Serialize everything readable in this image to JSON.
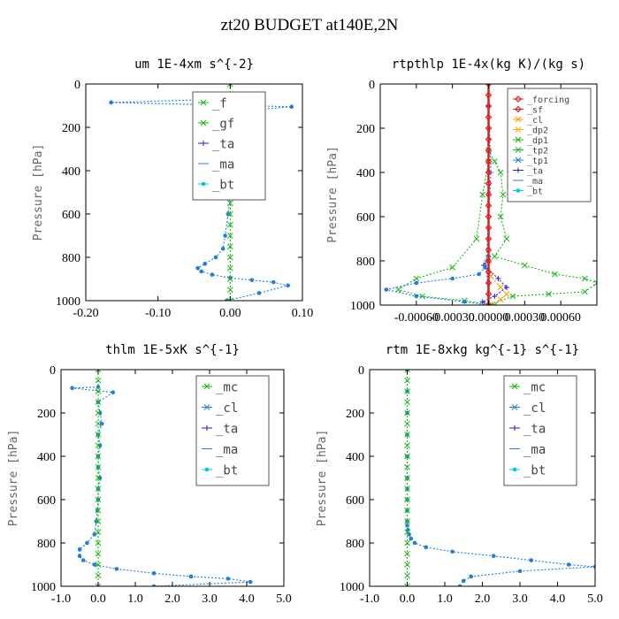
{
  "title": "zt20  BUDGET at140E,2N",
  "chart_data": [
    {
      "type": "line",
      "title": "um  1E-4xm s^{-2}",
      "ylabel": "Pressure [hPa]",
      "xlim": [
        -0.2,
        0.1
      ],
      "ylim": [
        0,
        1000
      ],
      "x_ticks": [
        "-0.20",
        "-0.10",
        "0.00",
        "0.10"
      ],
      "x_tick_values": [
        -0.2,
        -0.1,
        0.0,
        0.1
      ],
      "y_ticks": [
        "0",
        "200",
        "400",
        "600",
        "800",
        "1000"
      ],
      "legend": [
        "_f",
        "_gf",
        "_ta",
        "_ma",
        "_bt"
      ],
      "legend_position": "top-right",
      "series": [
        {
          "name": "_bt",
          "color": "#1e7fe0",
          "style": "dotted-star",
          "x": [
            -0.01,
            -0.165,
            0.085,
            -0.005,
            0.0,
            -0.004,
            0.004,
            -0.003,
            -0.004,
            -0.006,
            -0.002,
            -0.008,
            -0.002,
            0.0,
            -0.003,
            -0.007,
            -0.01,
            -0.02,
            -0.035,
            -0.045,
            -0.04,
            -0.025,
            0.0,
            0.03,
            0.06,
            0.08,
            0.04,
            -0.005
          ],
          "y": [
            70,
            85,
            105,
            130,
            160,
            200,
            240,
            280,
            320,
            360,
            400,
            440,
            480,
            520,
            600,
            700,
            760,
            800,
            830,
            850,
            865,
            880,
            895,
            905,
            915,
            930,
            965,
            1000
          ]
        },
        {
          "name": "_f",
          "color": "#18b818",
          "style": "dotted-x",
          "x": [
            0,
            0,
            0,
            0,
            0,
            0,
            0,
            0,
            0,
            0,
            0,
            0,
            0,
            0,
            0,
            0,
            0,
            0,
            0,
            0,
            0
          ],
          "y": [
            0,
            50,
            100,
            150,
            200,
            250,
            300,
            350,
            400,
            450,
            500,
            550,
            600,
            650,
            700,
            750,
            800,
            850,
            900,
            950,
            1000
          ]
        }
      ]
    },
    {
      "type": "line",
      "title": "rtpthlp  1E-4x(kg K)/(kg s)",
      "ylabel": "Pressure [hPa]",
      "xlim": [
        -0.0009,
        0.0009
      ],
      "ylim": [
        0,
        1000
      ],
      "x_ticks": [
        "-0.00060",
        "-0.00030",
        "0.00000",
        "0.00030",
        "0.00060"
      ],
      "x_tick_values": [
        -0.0006,
        -0.0003,
        0.0,
        0.0003,
        0.0006
      ],
      "y_ticks": [
        "0",
        "200",
        "400",
        "600",
        "800",
        "1000"
      ],
      "legend": [
        "_forcing",
        "_sf",
        "_cl",
        "_dp2",
        "_dp1",
        "_tp2",
        "_tp1",
        "_ta",
        "_ma",
        "_bt"
      ],
      "legend_position": "top-right",
      "series": [
        {
          "name": "_tp2",
          "color": "#18b818",
          "style": "dotted-x",
          "x": [
            0,
            5e-05,
            0.0001,
            0.00012,
            0.0001,
            0.00015,
            5e-05,
            0.0003,
            0.00055,
            0.0008,
            0.0009,
            0.0008,
            0.0005,
            0.0002,
            0.0
          ],
          "y": [
            300,
            350,
            400,
            500,
            600,
            700,
            780,
            820,
            860,
            880,
            900,
            940,
            950,
            960,
            1000
          ]
        },
        {
          "name": "_dp1",
          "color": "#18b818",
          "style": "dotted-x",
          "x": [
            0,
            -5e-05,
            -0.0001,
            -0.0003,
            -0.0006,
            -0.00075,
            -0.00055,
            -0.0002,
            5e-05
          ],
          "y": [
            350,
            500,
            700,
            830,
            880,
            930,
            960,
            980,
            1000
          ]
        },
        {
          "name": "_cl",
          "color": "#ff9900",
          "style": "dotted-x",
          "x": [
            0,
            2e-05,
            0.0001,
            0.00015,
            0.0001,
            0.0
          ],
          "y": [
            800,
            870,
            920,
            950,
            975,
            1000
          ]
        },
        {
          "name": "_ta",
          "color": "#2020c8",
          "style": "dotted-plus",
          "x": [
            0,
            -4e-05,
            8e-05,
            0.00015,
            5e-05,
            -5e-05,
            0.0
          ],
          "y": [
            780,
            820,
            880,
            920,
            960,
            985,
            1000
          ]
        },
        {
          "name": "_ma",
          "color": "#2a77ff",
          "style": "dotted-dash",
          "x": [
            0,
            2e-05,
            -2e-05,
            0.0
          ],
          "y": [
            100,
            400,
            800,
            1000
          ]
        },
        {
          "name": "_bt",
          "color": "#1e7fe0",
          "style": "dotted-star",
          "x": [
            0,
            -3e-05,
            -8e-05,
            -0.0003,
            -0.0006,
            -0.00085,
            -0.0006,
            -0.0002,
            0.0
          ],
          "y": [
            780,
            830,
            860,
            880,
            900,
            930,
            960,
            985,
            1000
          ]
        },
        {
          "name": "_forcing",
          "color": "#dd2020",
          "style": "solid-diamond",
          "x": [
            0,
            0,
            0,
            0,
            0,
            0,
            0,
            0,
            0,
            0,
            0,
            0,
            0,
            0,
            0,
            0,
            0,
            0,
            0,
            0,
            0
          ],
          "y": [
            0,
            50,
            100,
            150,
            200,
            250,
            300,
            350,
            400,
            450,
            500,
            550,
            600,
            650,
            700,
            750,
            800,
            850,
            900,
            950,
            1000
          ]
        }
      ]
    },
    {
      "type": "line",
      "title": "thlm  1E-5xK s^{-1}",
      "ylabel": "Pressure [hPa]",
      "xlim": [
        -1.0,
        5.0
      ],
      "ylim": [
        0,
        1000
      ],
      "x_ticks": [
        "-1.0",
        "0.0",
        "1.0",
        "2.0",
        "3.0",
        "4.0",
        "5.0"
      ],
      "x_tick_values": [
        -1.0,
        0.0,
        1.0,
        2.0,
        3.0,
        4.0,
        5.0
      ],
      "y_ticks": [
        "0",
        "200",
        "400",
        "600",
        "800",
        "1000"
      ],
      "legend": [
        "_mc",
        "_cl",
        "_ta",
        "_ma",
        "_bt"
      ],
      "legend_position": "top-right",
      "series": [
        {
          "name": "_cl",
          "color": "#1e7fe0",
          "style": "dotted-star",
          "x": [
            0.0,
            -0.7,
            0.4,
            0.0,
            0.05,
            0.1,
            0.0,
            0.05,
            0.0,
            0.0,
            0.05,
            0.0,
            0.0,
            -0.02,
            -0.05,
            -0.1,
            -0.3,
            -0.5,
            -0.5,
            -0.4,
            -0.1,
            0.5,
            1.5,
            2.5,
            3.5,
            4.1,
            1.5
          ],
          "y": [
            80,
            85,
            105,
            150,
            200,
            250,
            300,
            350,
            400,
            450,
            500,
            550,
            600,
            650,
            700,
            760,
            800,
            830,
            860,
            880,
            900,
            920,
            940,
            955,
            965,
            980,
            1000
          ]
        },
        {
          "name": "_mc",
          "color": "#18b818",
          "style": "dotted-x",
          "x": [
            0,
            0,
            0,
            0,
            0,
            0,
            0,
            0,
            0,
            0,
            0,
            0,
            0,
            0,
            0,
            0,
            0,
            0,
            0,
            0,
            0
          ],
          "y": [
            0,
            50,
            100,
            150,
            200,
            250,
            300,
            350,
            400,
            450,
            500,
            550,
            600,
            650,
            700,
            750,
            800,
            850,
            900,
            950,
            1000
          ]
        }
      ]
    },
    {
      "type": "line",
      "title": "rtm  1E-8xkg kg^{-1} s^{-1}",
      "ylabel": "Pressure [hPa]",
      "xlim": [
        -1.0,
        5.0
      ],
      "ylim": [
        0,
        1000
      ],
      "x_ticks": [
        "-1.0",
        "0.0",
        "1.0",
        "2.0",
        "3.0",
        "4.0",
        "5.0"
      ],
      "x_tick_values": [
        -1.0,
        0.0,
        1.0,
        2.0,
        3.0,
        4.0,
        5.0
      ],
      "y_ticks": [
        "0",
        "200",
        "400",
        "600",
        "800",
        "1000"
      ],
      "legend": [
        "_mc",
        "_cl",
        "_ta",
        "_ma",
        "_bt"
      ],
      "legend_position": "top-right",
      "series": [
        {
          "name": "_cl",
          "color": "#1e7fe0",
          "style": "dotted-star",
          "x": [
            0.0,
            0.0,
            0.0,
            0.0,
            0.0,
            0.0,
            0.0,
            0.0,
            0.0,
            0.0,
            0.0,
            0.02,
            0.05,
            0.1,
            0.2,
            0.5,
            1.2,
            2.3,
            3.3,
            4.3,
            5.0,
            3.0,
            1.7,
            1.5,
            1.4
          ],
          "y": [
            0,
            100,
            200,
            300,
            400,
            500,
            550,
            600,
            650,
            700,
            720,
            740,
            760,
            780,
            800,
            820,
            840,
            860,
            880,
            900,
            910,
            930,
            955,
            975,
            1000
          ]
        },
        {
          "name": "_mc",
          "color": "#18b818",
          "style": "dotted-x",
          "x": [
            0,
            0,
            0,
            0,
            0,
            0,
            0,
            0,
            0,
            0,
            0,
            0,
            0,
            0,
            0,
            0,
            0,
            0,
            0,
            0,
            0
          ],
          "y": [
            0,
            50,
            100,
            150,
            200,
            250,
            300,
            350,
            400,
            450,
            500,
            550,
            600,
            650,
            700,
            750,
            800,
            850,
            900,
            950,
            1000
          ]
        }
      ]
    }
  ]
}
